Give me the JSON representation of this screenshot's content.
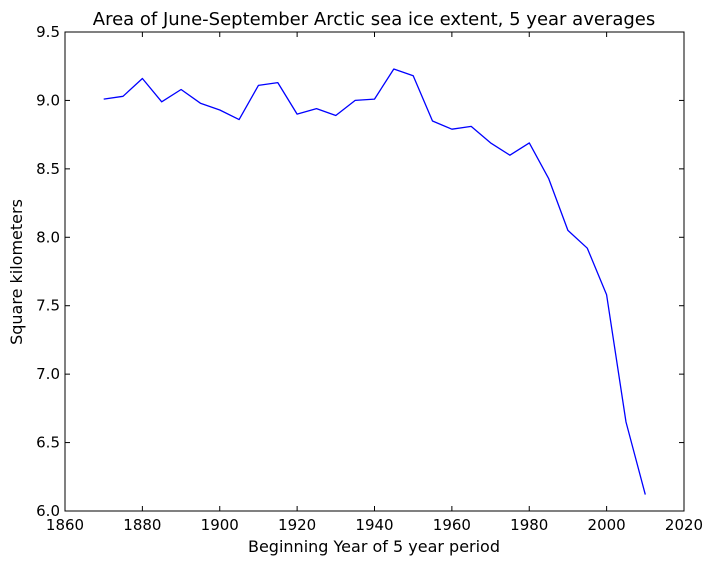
{
  "chart_data": {
    "type": "line",
    "title": "Area of June-September Arctic sea ice extent,   5 year averages",
    "xlabel": "Beginning Year of 5 year period",
    "ylabel": "Square kilometers",
    "xlim": [
      1860,
      2020
    ],
    "ylim": [
      6.0,
      9.5
    ],
    "xticks": [
      "1860",
      "1880",
      "1900",
      "1920",
      "1940",
      "1960",
      "1980",
      "2000",
      "2020"
    ],
    "yticks": [
      "6.0",
      "6.5",
      "7.0",
      "7.5",
      "8.0",
      "8.5",
      "9.0",
      "9.5"
    ],
    "grid": false,
    "series": [
      {
        "color": "#0000ff",
        "x": [
          1870,
          1875,
          1880,
          1885,
          1890,
          1895,
          1900,
          1905,
          1910,
          1915,
          1920,
          1925,
          1930,
          1935,
          1940,
          1945,
          1950,
          1955,
          1960,
          1965,
          1970,
          1975,
          1980,
          1985,
          1990,
          1995,
          2000,
          2005,
          2010
        ],
        "y": [
          9.01,
          9.03,
          9.16,
          8.99,
          9.08,
          8.98,
          8.93,
          8.86,
          9.11,
          9.13,
          8.9,
          8.94,
          8.89,
          9.0,
          9.01,
          9.23,
          9.18,
          8.85,
          8.79,
          8.81,
          8.69,
          8.6,
          8.69,
          8.43,
          8.05,
          7.92,
          7.58,
          6.65,
          6.12
        ]
      }
    ]
  }
}
